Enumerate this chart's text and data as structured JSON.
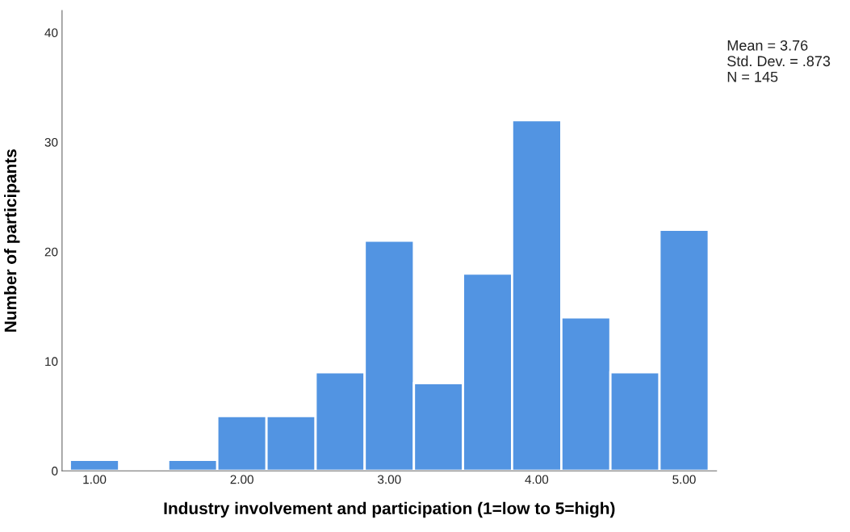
{
  "chart_data": {
    "type": "histogram",
    "xlabel": "Industry involvement and participation (1=low to 5=high)",
    "ylabel": "Number of participants",
    "bins": [
      0.833,
      1.167,
      1.5,
      1.833,
      2.167,
      2.5,
      2.833,
      3.167,
      3.5,
      3.833,
      4.167,
      4.5,
      4.833,
      5.167
    ],
    "values": [
      1,
      0,
      1,
      5,
      5,
      9,
      21,
      8,
      18,
      32,
      14,
      9,
      22
    ],
    "color": "#5294e2",
    "xlim": [
      0.78,
      5.22
    ],
    "ylim": [
      0,
      42
    ],
    "xticks": [
      {
        "value": 1,
        "label": "1.00"
      },
      {
        "value": 2,
        "label": "2.00"
      },
      {
        "value": 3,
        "label": "3.00"
      },
      {
        "value": 4,
        "label": "4.00"
      },
      {
        "value": 5,
        "label": "5.00"
      }
    ],
    "yticks": [
      0,
      10,
      20,
      30,
      40
    ],
    "grid": false,
    "annotations": [
      "Mean = 3.76\nStd. Dev. = .873\nN = 145"
    ]
  }
}
